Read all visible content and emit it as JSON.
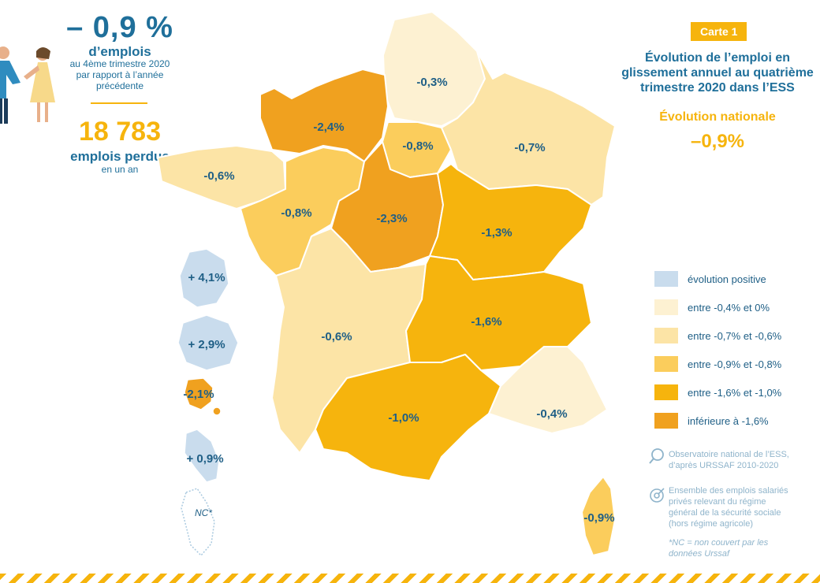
{
  "kpi": {
    "percent": "– 0,9 %",
    "percent_label": "d’emplois",
    "percent_desc_1": "au 4ème trimestre 2020",
    "percent_desc_2": "par rapport à l’année",
    "percent_desc_3": "précédente",
    "lost": "18 783",
    "lost_label": "emplois perdus",
    "lost_desc": "en un an"
  },
  "header": {
    "badge": "Carte 1",
    "title_1": "Évolution de l’emploi en",
    "title_2": "glissement annuel au quatrième",
    "title_3": "trimestre 2020 dans l’ESS",
    "national_title": "Évolution nationale",
    "national_value": "–0,9%"
  },
  "regions": [
    {
      "name": "Hauts-de-France",
      "value": "-0,3%",
      "color": "#fdf1d2"
    },
    {
      "name": "Normandie",
      "value": "-2,4%",
      "color": "#f0a11f"
    },
    {
      "name": "Île-de-France",
      "value": "-0,8%",
      "color": "#fbcd5c"
    },
    {
      "name": "Grand Est",
      "value": "-0,7%",
      "color": "#fce4a6"
    },
    {
      "name": "Bretagne",
      "value": "-0,6%",
      "color": "#fce4a6"
    },
    {
      "name": "Pays de la Loire",
      "value": "-0,8%",
      "color": "#fbcd5c"
    },
    {
      "name": "Centre-Val de Loire",
      "value": "-2,3%",
      "color": "#f0a11f"
    },
    {
      "name": "Bourgogne-Franche-Comté",
      "value": "-1,3%",
      "color": "#f6b40d"
    },
    {
      "name": "Nouvelle-Aquitaine",
      "value": "-0,6%",
      "color": "#fce4a6"
    },
    {
      "name": "Auvergne-Rhône-Alpes",
      "value": "-1,6%",
      "color": "#f6b40d"
    },
    {
      "name": "Occitanie",
      "value": "-1,0%",
      "color": "#f6b40d"
    },
    {
      "name": "Provence-Alpes-Côte d’Azur",
      "value": "-0,4%",
      "color": "#fdf1d2"
    },
    {
      "name": "Corse",
      "value": "-0,9%",
      "color": "#fbcd5c"
    }
  ],
  "overseas": [
    {
      "name": "Guadeloupe",
      "value": "+ 4,1%",
      "color": "#c9dced"
    },
    {
      "name": "La Réunion",
      "value": "+ 2,9%",
      "color": "#c9dced"
    },
    {
      "name": "Guyane",
      "value": "-2,1%",
      "color": "#f0a11f"
    },
    {
      "name": "Martinique",
      "value": "+ 0,9%",
      "color": "#c9dced"
    },
    {
      "name": "Mayotte",
      "value": "NC*",
      "color": "#ffffff"
    }
  ],
  "legend": [
    {
      "label": "évolution positive",
      "color": "#c9dced"
    },
    {
      "label": "entre -0,4% et 0%",
      "color": "#fdf1d2"
    },
    {
      "label": "entre -0,7% et -0,6%",
      "color": "#fce4a6"
    },
    {
      "label": "entre -0,9% et -0,8%",
      "color": "#fbcd5c"
    },
    {
      "label": "entre -1,6% et -1,0%",
      "color": "#f6b40d"
    },
    {
      "label": "inférieure à -1,6%",
      "color": "#f0a11f"
    }
  ],
  "source": {
    "line1": "Observatoire national de l’ESS,",
    "line2": "d’après URSSAF 2010-2020",
    "scope1": "Ensemble des emplois salariés",
    "scope2": "privés relevant du régime",
    "scope3": "général de la sécurité sociale",
    "scope4": "(hors régime agricole)",
    "note1": "*NC = non couvert par les",
    "note2": "données Urssaf"
  },
  "icons": [
    "people-illustration",
    "magnifier-icon",
    "scope-icon"
  ]
}
